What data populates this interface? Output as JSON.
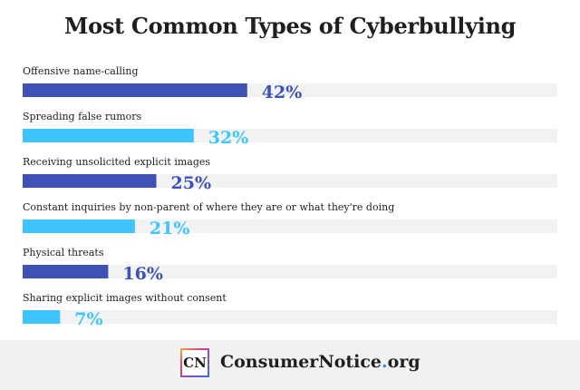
{
  "chart_data": {
    "type": "bar",
    "orientation": "horizontal",
    "title": "Most Common Types of Cyberbullying",
    "categories": [
      "Offensive name-calling",
      "Spreading false rumors",
      "Receiving unsolicited explicit images",
      "Constant inquiries by non-parent of where they are or what they're doing",
      "Physical threats",
      "Sharing explicit images without consent"
    ],
    "values": [
      42,
      32,
      25,
      21,
      16,
      7
    ],
    "value_labels": [
      "42%",
      "32%",
      "25%",
      "21%",
      "16%",
      "7%"
    ],
    "xlim": [
      0,
      100
    ],
    "colors": [
      "#3f51b5",
      "#40c4ff",
      "#3f51b5",
      "#40c4ff",
      "#3f51b5",
      "#40c4ff"
    ],
    "track_color": "#f1f3f3",
    "grid": false,
    "legend": "none"
  },
  "footer": {
    "logo_text": "CN",
    "brand_name": "ConsumerNotice",
    "brand_dot": ".",
    "brand_tld": "org",
    "dot_color": "#2f8fe0"
  }
}
